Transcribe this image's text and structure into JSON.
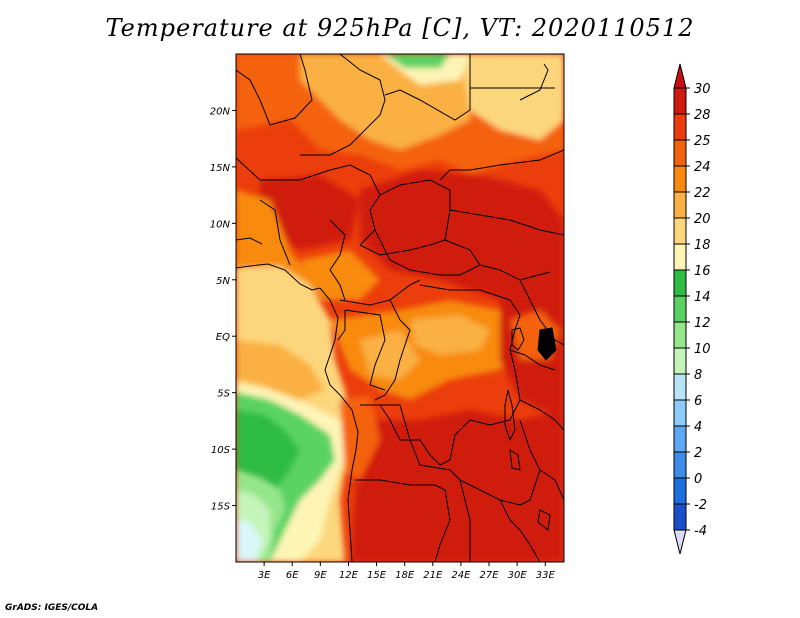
{
  "title": "Temperature at 925hPa [C], VT: 2020110512",
  "credit": "GrADS: IGES/COLA",
  "map": {
    "lon_range": [
      0,
      35
    ],
    "lat_range": [
      -20,
      25
    ],
    "lon_ticks": [
      {
        "value": 3,
        "label": "3E"
      },
      {
        "value": 6,
        "label": "6E"
      },
      {
        "value": 9,
        "label": "9E"
      },
      {
        "value": 12,
        "label": "12E"
      },
      {
        "value": 15,
        "label": "15E"
      },
      {
        "value": 18,
        "label": "18E"
      },
      {
        "value": 21,
        "label": "21E"
      },
      {
        "value": 24,
        "label": "24E"
      },
      {
        "value": 27,
        "label": "27E"
      },
      {
        "value": 30,
        "label": "30E"
      },
      {
        "value": 33,
        "label": "33E"
      }
    ],
    "lat_ticks": [
      {
        "value": 20,
        "label": "20N"
      },
      {
        "value": 15,
        "label": "15N"
      },
      {
        "value": 10,
        "label": "10N"
      },
      {
        "value": 5,
        "label": "5N"
      },
      {
        "value": 0,
        "label": "EQ"
      },
      {
        "value": -5,
        "label": "5S"
      },
      {
        "value": -10,
        "label": "10S"
      },
      {
        "value": -15,
        "label": "15S"
      }
    ]
  },
  "colorbar": {
    "levels": [
      {
        "label": "30",
        "color": "#d01a10"
      },
      {
        "label": "28",
        "color": "#ec3e0c"
      },
      {
        "label": "25",
        "color": "#f4620c"
      },
      {
        "label": "24",
        "color": "#f88a10"
      },
      {
        "label": "22",
        "color": "#fab042"
      },
      {
        "label": "20",
        "color": "#fcd67c"
      },
      {
        "label": "18",
        "color": "#fdf4b6"
      },
      {
        "label": "16",
        "color": "#2ebc44"
      },
      {
        "label": "14",
        "color": "#5ad364"
      },
      {
        "label": "12",
        "color": "#96e68c"
      },
      {
        "label": "10",
        "color": "#c4f4ba"
      },
      {
        "label": "8",
        "color": "#b8e4fa"
      },
      {
        "label": "6",
        "color": "#8ccafa"
      },
      {
        "label": "4",
        "color": "#5ca8f4"
      },
      {
        "label": "2",
        "color": "#3c8ce8"
      },
      {
        "label": "0",
        "color": "#1e6ee0"
      },
      {
        "label": "-2",
        "color": "#1a50c8"
      },
      {
        "label": "-4",
        "color": "#0a2890"
      }
    ],
    "top_triangle_color": "#c80e0e",
    "bottom_triangle_color": "#dcdcf8"
  }
}
